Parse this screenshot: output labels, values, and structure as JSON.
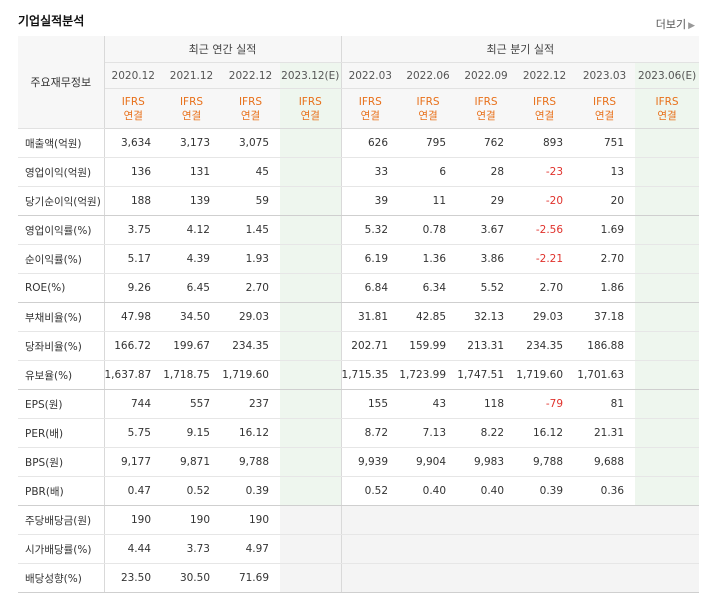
{
  "title": "기업실적분석",
  "more_label": "더보기",
  "header": {
    "row_label": "주요재무정보",
    "annual_group": "최근 연간 실적",
    "quarterly_group": "최근 분기 실적",
    "annual_periods": [
      "2020.12",
      "2021.12",
      "2022.12",
      "2023.12(E)"
    ],
    "quarterly_periods": [
      "2022.03",
      "2022.06",
      "2022.09",
      "2022.12",
      "2023.03",
      "2023.06(E)"
    ],
    "standard_top": "IFRS",
    "standard_bottom": "연결"
  },
  "rows": [
    {
      "label": "매출액(억원)",
      "annual": [
        "3,634",
        "3,173",
        "3,075",
        ""
      ],
      "quarterly": [
        "626",
        "795",
        "762",
        "893",
        "751",
        ""
      ]
    },
    {
      "label": "영업이익(억원)",
      "annual": [
        "136",
        "131",
        "45",
        ""
      ],
      "quarterly": [
        "33",
        "6",
        "28",
        "-23",
        "13",
        ""
      ]
    },
    {
      "label": "당기순이익(억원)",
      "annual": [
        "188",
        "139",
        "59",
        ""
      ],
      "quarterly": [
        "39",
        "11",
        "29",
        "-20",
        "20",
        ""
      ]
    },
    {
      "label": "영업이익률(%)",
      "annual": [
        "3.75",
        "4.12",
        "1.45",
        ""
      ],
      "quarterly": [
        "5.32",
        "0.78",
        "3.67",
        "-2.56",
        "1.69",
        ""
      ]
    },
    {
      "label": "순이익률(%)",
      "annual": [
        "5.17",
        "4.39",
        "1.93",
        ""
      ],
      "quarterly": [
        "6.19",
        "1.36",
        "3.86",
        "-2.21",
        "2.70",
        ""
      ]
    },
    {
      "label": "ROE(%)",
      "annual": [
        "9.26",
        "6.45",
        "2.70",
        ""
      ],
      "quarterly": [
        "6.84",
        "6.34",
        "5.52",
        "2.70",
        "1.86",
        ""
      ]
    },
    {
      "label": "부채비율(%)",
      "annual": [
        "47.98",
        "34.50",
        "29.03",
        ""
      ],
      "quarterly": [
        "31.81",
        "42.85",
        "32.13",
        "29.03",
        "37.18",
        ""
      ]
    },
    {
      "label": "당좌비율(%)",
      "annual": [
        "166.72",
        "199.67",
        "234.35",
        ""
      ],
      "quarterly": [
        "202.71",
        "159.99",
        "213.31",
        "234.35",
        "186.88",
        ""
      ]
    },
    {
      "label": "유보율(%)",
      "annual": [
        "1,637.87",
        "1,718.75",
        "1,719.60",
        ""
      ],
      "quarterly": [
        "1,715.35",
        "1,723.99",
        "1,747.51",
        "1,719.60",
        "1,701.63",
        ""
      ]
    },
    {
      "label": "EPS(원)",
      "annual": [
        "744",
        "557",
        "237",
        ""
      ],
      "quarterly": [
        "155",
        "43",
        "118",
        "-79",
        "81",
        ""
      ]
    },
    {
      "label": "PER(배)",
      "annual": [
        "5.75",
        "9.15",
        "16.12",
        ""
      ],
      "quarterly": [
        "8.72",
        "7.13",
        "8.22",
        "16.12",
        "21.31",
        ""
      ]
    },
    {
      "label": "BPS(원)",
      "annual": [
        "9,177",
        "9,871",
        "9,788",
        ""
      ],
      "quarterly": [
        "9,939",
        "9,904",
        "9,983",
        "9,788",
        "9,688",
        ""
      ]
    },
    {
      "label": "PBR(배)",
      "annual": [
        "0.47",
        "0.52",
        "0.39",
        ""
      ],
      "quarterly": [
        "0.52",
        "0.40",
        "0.40",
        "0.39",
        "0.36",
        ""
      ]
    },
    {
      "label": "주당배당금(원)",
      "annual": [
        "190",
        "190",
        "190",
        ""
      ],
      "quarterly": [
        "",
        "",
        "",
        "",
        "",
        ""
      ]
    },
    {
      "label": "시가배당률(%)",
      "annual": [
        "4.44",
        "3.73",
        "4.97",
        ""
      ],
      "quarterly": [
        "",
        "",
        "",
        "",
        "",
        ""
      ]
    },
    {
      "label": "배당성향(%)",
      "annual": [
        "23.50",
        "30.50",
        "71.69",
        ""
      ],
      "quarterly": [
        "",
        "",
        "",
        "",
        "",
        ""
      ]
    }
  ]
}
